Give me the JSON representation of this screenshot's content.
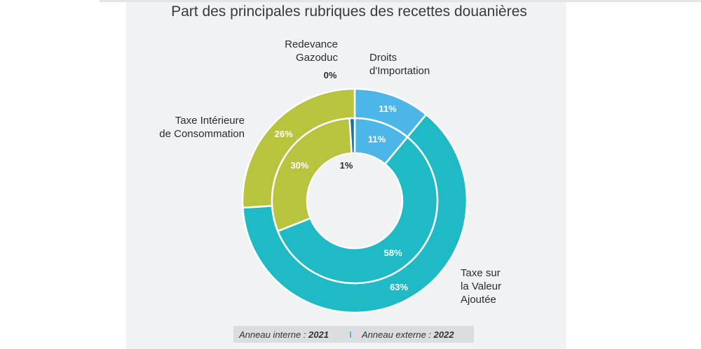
{
  "chart_data": {
    "type": "donut",
    "title": "Part des principales rubriques des recettes douanières",
    "categories": [
      "Droits d'Importation",
      "Taxe sur la Valeur Ajoutée",
      "Taxe Intérieure de Consommation",
      "Redevance Gazoduc"
    ],
    "category_lines": [
      [
        "Droits",
        "d'Importation"
      ],
      [
        "Taxe sur",
        "la Valeur",
        "Ajoutée"
      ],
      [
        "Taxe Intérieure",
        "de Consommation"
      ],
      [
        "Redevance",
        "Gazoduc"
      ]
    ],
    "colors": [
      "#4db6e8",
      "#20b9c6",
      "#b8c33e",
      "#1d6fa8"
    ],
    "series": [
      {
        "ring": "inner",
        "values": [
          11,
          58,
          30,
          1
        ],
        "labels": [
          "11%",
          "58%",
          "30%",
          "1%"
        ]
      },
      {
        "ring": "outer",
        "values": [
          11,
          63,
          26,
          0
        ],
        "labels": [
          "11%",
          "63%",
          "26%",
          "0%"
        ]
      }
    ],
    "legend": {
      "inner_label": "Anneau interne : ",
      "inner_year": "2021",
      "separator": "I",
      "outer_label": "Anneau externe : ",
      "outer_year": "2022"
    }
  }
}
